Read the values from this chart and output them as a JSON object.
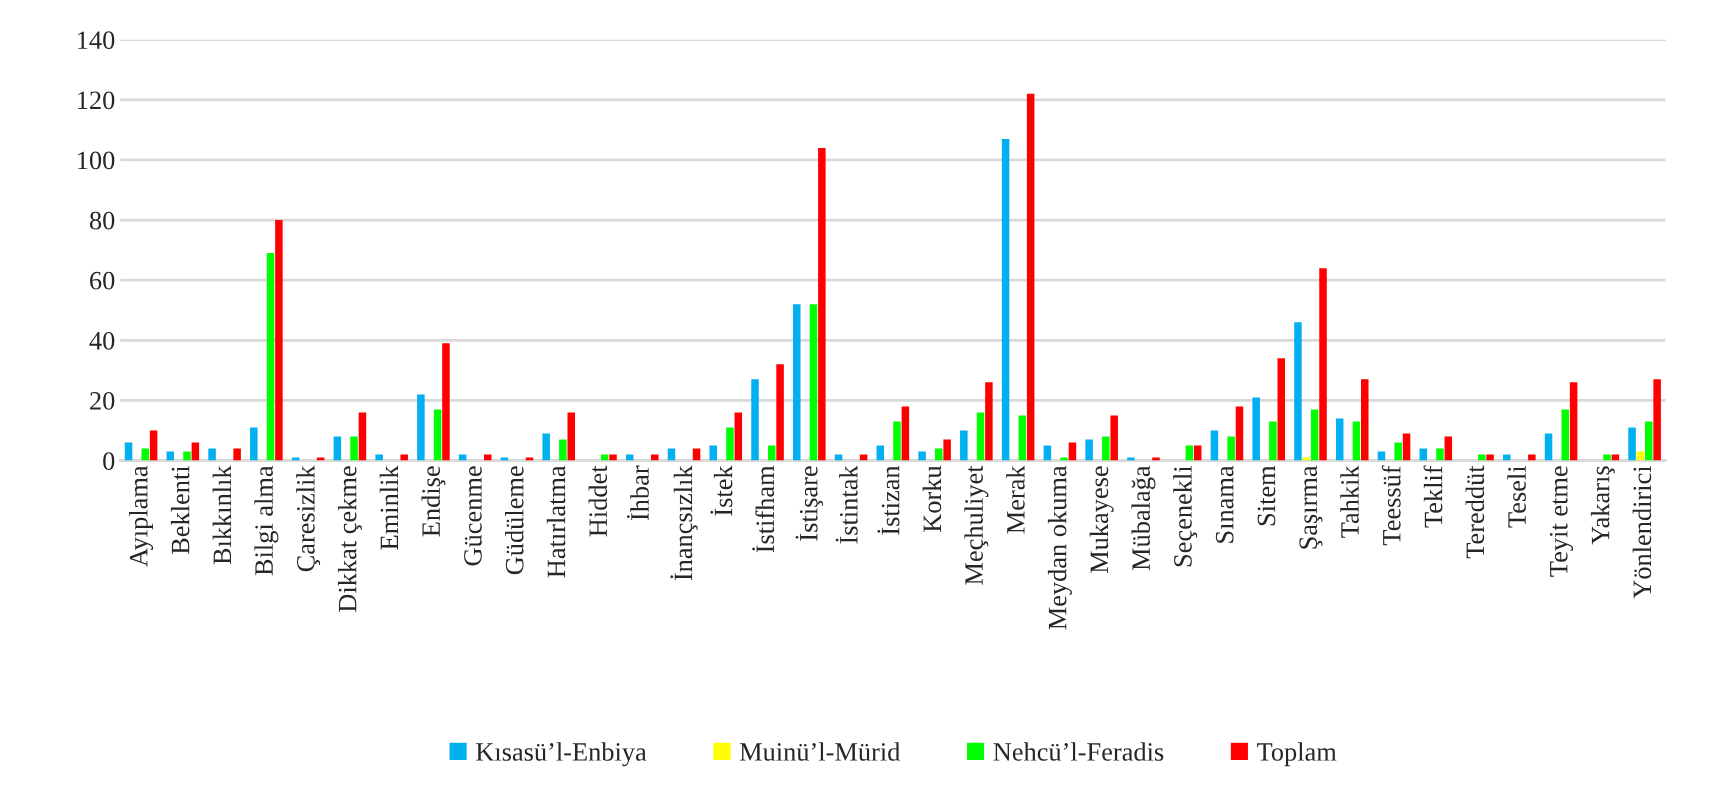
{
  "chart_data": {
    "type": "bar",
    "categories": [
      "Ayıplama",
      "Beklenti",
      "Bıkkınlık",
      "Bilgi alma",
      "Çaresizlik",
      "Dikkat çekme",
      "Eminlik",
      "Endişe",
      "Gücenme",
      "Güdüleme",
      "Hatırlatma",
      "Hiddet",
      "İhbar",
      "İnançsızlık",
      "İstek",
      "İstifham",
      "İstişare",
      "İstintak",
      "İstizan",
      "Korku",
      "Meçhuliyet",
      "Merak",
      "Meydan okuma",
      "Mukayese",
      "Mübalağa",
      "Seçenekli",
      "Sınama",
      "Sitem",
      "Şaşırma",
      "Tahkik",
      "Teessüf",
      "Teklif",
      "Tereddüt",
      "Teseli",
      "Teyit etme",
      "Yakarış",
      "Yönlendirici"
    ],
    "series": [
      {
        "name": "Kısasü’l-Enbiya",
        "color": "#00b0f0",
        "values": [
          6,
          3,
          4,
          11,
          1,
          8,
          2,
          22,
          2,
          1,
          9,
          0,
          2,
          4,
          5,
          27,
          52,
          2,
          5,
          3,
          10,
          107,
          5,
          7,
          1,
          0,
          10,
          21,
          46,
          14,
          3,
          4,
          0,
          2,
          9,
          0,
          11
        ]
      },
      {
        "name": "Muinü’l-Mürid",
        "color": "#ffff00",
        "values": [
          0,
          0,
          0,
          0,
          0,
          0,
          0,
          0,
          0,
          0,
          0,
          0,
          0,
          0,
          0,
          0,
          0,
          0,
          0,
          0,
          0,
          0,
          0,
          0,
          0,
          0,
          0,
          0,
          1,
          0,
          0,
          0,
          0,
          0,
          0,
          0,
          3
        ]
      },
      {
        "name": "Nehcü’l-Feradis",
        "color": "#00ff00",
        "values": [
          4,
          3,
          0,
          69,
          0,
          8,
          0,
          17,
          0,
          0,
          7,
          2,
          0,
          0,
          11,
          5,
          52,
          0,
          13,
          4,
          16,
          15,
          1,
          8,
          0,
          5,
          8,
          13,
          17,
          13,
          6,
          4,
          2,
          0,
          17,
          2,
          13
        ]
      },
      {
        "name": "Toplam",
        "color": "#ff0000",
        "values": [
          10,
          6,
          4,
          80,
          1,
          16,
          2,
          39,
          2,
          1,
          16,
          2,
          2,
          4,
          16,
          32,
          104,
          2,
          18,
          7,
          26,
          122,
          6,
          15,
          1,
          5,
          18,
          34,
          64,
          27,
          9,
          8,
          2,
          2,
          26,
          2,
          27
        ]
      }
    ],
    "ylim": [
      0,
      140
    ],
    "yticks": [
      0,
      20,
      40,
      60,
      80,
      100,
      120,
      140
    ],
    "grid": "y",
    "legend": "bottom"
  }
}
